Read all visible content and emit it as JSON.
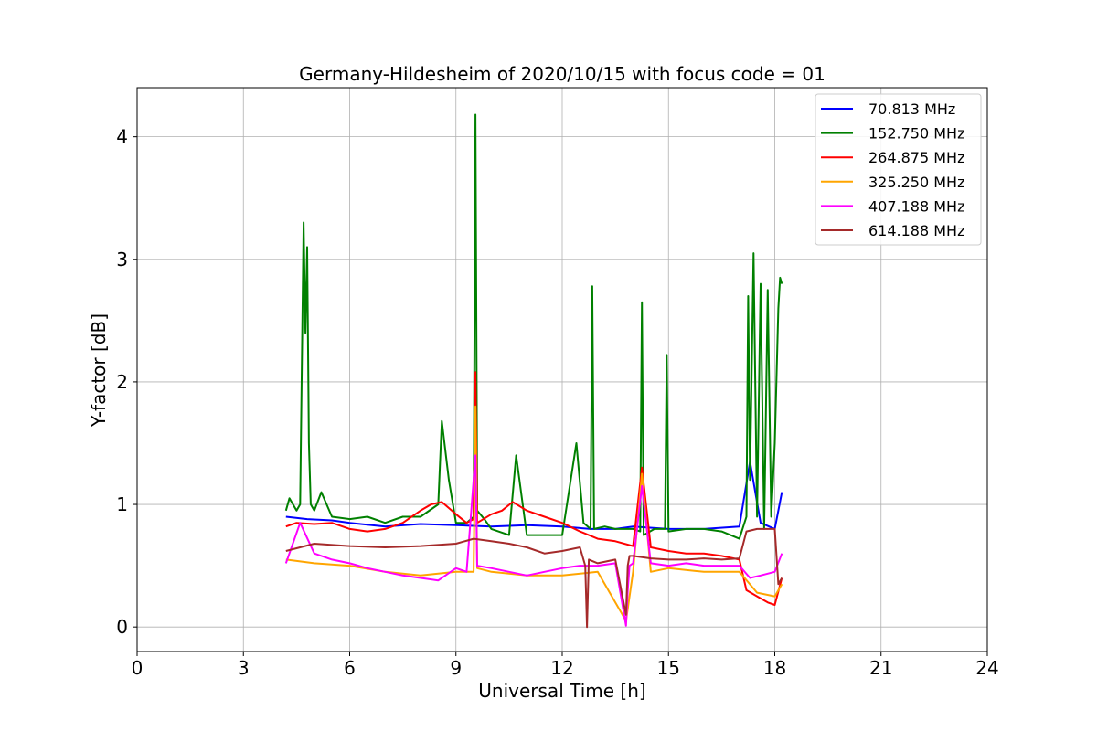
{
  "chart_data": {
    "type": "line",
    "title": "Germany-Hildesheim of 2020/10/15 with focus code = 01",
    "xlabel": "Universal Time [h]",
    "ylabel": "Y-factor [dB]",
    "xlim": [
      0,
      24
    ],
    "ylim": [
      -0.2,
      4.4
    ],
    "xticks": [
      0,
      3,
      6,
      9,
      12,
      15,
      18,
      21,
      24
    ],
    "xtick_labels": [
      "0",
      "3",
      "6",
      "9",
      "12",
      "15",
      "18",
      "21",
      "24"
    ],
    "yticks": [
      0,
      1,
      2,
      3,
      4
    ],
    "ytick_labels": [
      "0",
      "1",
      "2",
      "3",
      "4"
    ],
    "grid": true,
    "legend_position": "top-right",
    "series": [
      {
        "name": " 70.813 MHz",
        "color": "#0000ff",
        "x": [
          4.2,
          4.8,
          5.5,
          6.0,
          7.0,
          8.0,
          9.0,
          10.0,
          11.0,
          12.0,
          12.8,
          13.5,
          14.0,
          15.0,
          16.0,
          17.0,
          17.3,
          17.6,
          18.0,
          18.2
        ],
        "y": [
          0.9,
          0.88,
          0.87,
          0.85,
          0.82,
          0.84,
          0.83,
          0.82,
          0.83,
          0.82,
          0.8,
          0.8,
          0.82,
          0.8,
          0.8,
          0.82,
          1.35,
          0.85,
          0.8,
          1.1
        ]
      },
      {
        "name": "152.750 MHz",
        "color": "#008000",
        "x": [
          4.2,
          4.3,
          4.5,
          4.6,
          4.7,
          4.75,
          4.8,
          4.85,
          4.9,
          5.0,
          5.2,
          5.5,
          6.0,
          6.5,
          7.0,
          7.5,
          8.0,
          8.5,
          8.6,
          8.8,
          9.0,
          9.3,
          9.5,
          9.55,
          9.6,
          9.8,
          10.0,
          10.5,
          10.7,
          11.0,
          11.5,
          12.0,
          12.4,
          12.6,
          12.8,
          12.85,
          12.9,
          13.2,
          13.5,
          14.0,
          14.2,
          14.25,
          14.3,
          14.6,
          14.9,
          14.95,
          15.0,
          15.5,
          16.0,
          16.5,
          17.0,
          17.2,
          17.25,
          17.3,
          17.4,
          17.5,
          17.6,
          17.7,
          17.8,
          17.9,
          18.0,
          18.1,
          18.15,
          18.2
        ],
        "y": [
          0.95,
          1.05,
          0.95,
          1.0,
          3.3,
          2.4,
          3.1,
          1.5,
          1.0,
          0.95,
          1.1,
          0.9,
          0.88,
          0.9,
          0.85,
          0.9,
          0.9,
          1.0,
          1.68,
          1.2,
          0.85,
          0.85,
          0.9,
          4.18,
          0.95,
          0.88,
          0.8,
          0.75,
          1.4,
          0.75,
          0.75,
          0.75,
          1.5,
          0.85,
          0.8,
          2.78,
          0.8,
          0.82,
          0.8,
          0.8,
          0.78,
          2.65,
          0.75,
          0.8,
          0.8,
          2.22,
          0.78,
          0.8,
          0.8,
          0.78,
          0.72,
          0.9,
          2.7,
          1.2,
          3.05,
          0.9,
          2.8,
          0.8,
          2.75,
          0.9,
          1.5,
          2.6,
          2.85,
          2.8
        ]
      },
      {
        "name": "264.875 MHz",
        "color": "#ff0000",
        "x": [
          4.2,
          4.5,
          5.0,
          5.5,
          6.0,
          6.5,
          7.0,
          7.5,
          8.0,
          8.3,
          8.6,
          9.0,
          9.3,
          9.5,
          9.55,
          9.6,
          10.0,
          10.3,
          10.6,
          11.0,
          11.5,
          12.0,
          12.5,
          13.0,
          13.5,
          14.0,
          14.25,
          14.5,
          15.0,
          15.5,
          16.0,
          16.5,
          17.0,
          17.2,
          17.5,
          17.8,
          18.0,
          18.2
        ],
        "y": [
          0.82,
          0.85,
          0.84,
          0.85,
          0.8,
          0.78,
          0.8,
          0.85,
          0.95,
          1.0,
          1.02,
          0.92,
          0.85,
          0.88,
          2.08,
          0.85,
          0.92,
          0.95,
          1.02,
          0.95,
          0.9,
          0.85,
          0.78,
          0.72,
          0.7,
          0.66,
          1.3,
          0.65,
          0.62,
          0.6,
          0.6,
          0.58,
          0.55,
          0.3,
          0.25,
          0.2,
          0.18,
          0.4
        ]
      },
      {
        "name": "325.250 MHz",
        "color": "#ffa500",
        "x": [
          4.2,
          5.0,
          6.0,
          7.0,
          8.0,
          9.0,
          9.5,
          9.55,
          9.6,
          10.0,
          11.0,
          12.0,
          13.0,
          13.8,
          14.0,
          14.25,
          14.5,
          15.0,
          16.0,
          17.0,
          17.5,
          18.0,
          18.2
        ],
        "y": [
          0.55,
          0.52,
          0.5,
          0.45,
          0.42,
          0.45,
          0.45,
          1.8,
          0.48,
          0.45,
          0.42,
          0.42,
          0.45,
          0.05,
          0.45,
          1.25,
          0.45,
          0.48,
          0.45,
          0.45,
          0.28,
          0.25,
          0.35
        ]
      },
      {
        "name": "407.188 MHz",
        "color": "#ff00ff",
        "x": [
          4.2,
          4.6,
          5.0,
          5.5,
          6.0,
          6.5,
          7.0,
          7.5,
          8.0,
          8.5,
          9.0,
          9.3,
          9.55,
          9.6,
          10.0,
          10.5,
          11.0,
          11.5,
          12.0,
          12.5,
          13.0,
          13.5,
          13.8,
          13.85,
          13.9,
          14.0,
          14.25,
          14.5,
          15.0,
          15.5,
          16.0,
          16.5,
          17.0,
          17.3,
          17.6,
          18.0,
          18.2
        ],
        "y": [
          0.52,
          0.85,
          0.6,
          0.55,
          0.52,
          0.48,
          0.45,
          0.42,
          0.4,
          0.38,
          0.48,
          0.45,
          1.4,
          0.5,
          0.48,
          0.45,
          0.42,
          0.45,
          0.48,
          0.5,
          0.5,
          0.52,
          0.01,
          0.3,
          0.5,
          0.52,
          1.15,
          0.52,
          0.5,
          0.52,
          0.5,
          0.5,
          0.5,
          0.4,
          0.42,
          0.45,
          0.6
        ]
      },
      {
        "name": "614.188 MHz",
        "color": "#a52a2a",
        "x": [
          4.2,
          5.0,
          6.0,
          7.0,
          8.0,
          9.0,
          9.5,
          10.0,
          10.5,
          11.0,
          11.5,
          12.0,
          12.5,
          12.65,
          12.7,
          12.75,
          13.0,
          13.5,
          13.8,
          13.85,
          13.9,
          14.0,
          14.5,
          15.0,
          15.5,
          16.0,
          16.5,
          17.0,
          17.2,
          17.5,
          18.0,
          18.1,
          18.2
        ],
        "y": [
          0.62,
          0.68,
          0.66,
          0.65,
          0.66,
          0.68,
          0.72,
          0.7,
          0.68,
          0.65,
          0.6,
          0.62,
          0.65,
          0.5,
          0.0,
          0.55,
          0.52,
          0.55,
          0.1,
          0.5,
          0.58,
          0.58,
          0.56,
          0.55,
          0.55,
          0.56,
          0.55,
          0.56,
          0.78,
          0.8,
          0.8,
          0.35,
          0.4
        ]
      }
    ]
  }
}
